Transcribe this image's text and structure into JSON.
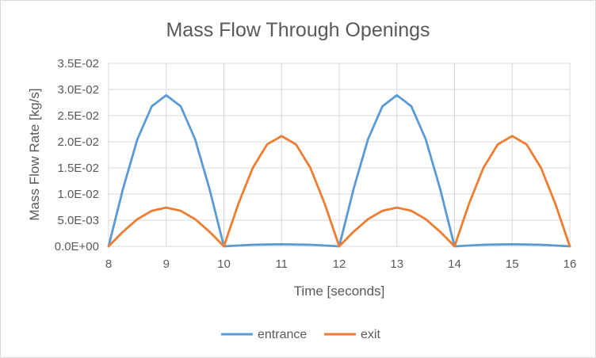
{
  "chart_data": {
    "type": "line",
    "title": "Mass Flow Through Openings",
    "xlabel": "Time [seconds]",
    "ylabel": "Mass Flow Rate [kg/s]",
    "xlim": [
      8,
      16
    ],
    "ylim": [
      0,
      0.035
    ],
    "x_ticks": [
      8,
      9,
      10,
      11,
      12,
      13,
      14,
      15,
      16
    ],
    "x_tick_labels": [
      "8",
      "9",
      "10",
      "11",
      "12",
      "13",
      "14",
      "15",
      "16"
    ],
    "y_ticks": [
      0,
      0.005,
      0.01,
      0.015,
      0.02,
      0.025,
      0.03,
      0.035
    ],
    "y_tick_labels": [
      "0.0E+00",
      "5.0E-03",
      "1.0E-02",
      "1.5E-02",
      "2.0E-02",
      "2.5E-02",
      "3.0E-02",
      "3.5E-02"
    ],
    "grid": true,
    "legend_position": "bottom",
    "series": [
      {
        "name": "entrance",
        "color": "#5b9bd5",
        "x": [
          8,
          8.25,
          8.5,
          8.75,
          9,
          9.25,
          9.5,
          9.75,
          10,
          10.5,
          11,
          11.5,
          12,
          12.25,
          12.5,
          12.75,
          13,
          13.25,
          13.5,
          13.75,
          14,
          14.5,
          15,
          15.5,
          16
        ],
        "y": [
          0,
          0.011,
          0.0205,
          0.0268,
          0.0289,
          0.0268,
          0.0205,
          0.011,
          0,
          0.0003,
          0.0004,
          0.0003,
          0,
          0.011,
          0.0205,
          0.0268,
          0.0289,
          0.0268,
          0.0205,
          0.011,
          0,
          0.0003,
          0.0004,
          0.0003,
          0
        ]
      },
      {
        "name": "exit",
        "color": "#ed7d31",
        "x": [
          8,
          8.25,
          8.5,
          8.75,
          9,
          9.25,
          9.5,
          9.75,
          10,
          10.25,
          10.5,
          10.75,
          11,
          11.25,
          11.5,
          11.75,
          12,
          12.25,
          12.5,
          12.75,
          13,
          13.25,
          13.5,
          13.75,
          14,
          14.25,
          14.5,
          14.75,
          15,
          15.25,
          15.5,
          15.75,
          16
        ],
        "y": [
          0,
          0.0028,
          0.0052,
          0.0068,
          0.0074,
          0.0068,
          0.0052,
          0.0028,
          0,
          0.0081,
          0.015,
          0.0195,
          0.0211,
          0.0195,
          0.015,
          0.0081,
          0,
          0.0028,
          0.0052,
          0.0068,
          0.0074,
          0.0068,
          0.0052,
          0.0028,
          0,
          0.0081,
          0.015,
          0.0195,
          0.0211,
          0.0195,
          0.015,
          0.0081,
          0
        ]
      }
    ]
  }
}
